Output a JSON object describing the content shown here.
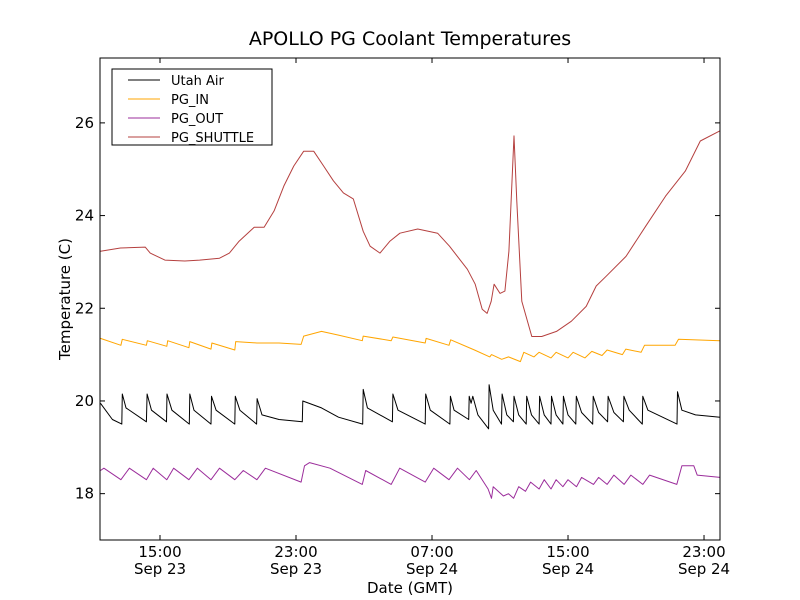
{
  "chart_data": {
    "type": "line",
    "title": "APOLLO PG Coolant Temperatures",
    "xlabel": "Date (GMT)",
    "ylabel": "Temperature (C)",
    "x_units": "hours since Sep 23 00:00 GMT",
    "xlim": [
      11.47,
      47.94
    ],
    "ylim": [
      17.0,
      27.4
    ],
    "grid": false,
    "legend_position": "top-left",
    "xticks": [
      {
        "value": 15,
        "time": "15:00",
        "date": "Sep 23"
      },
      {
        "value": 23,
        "time": "23:00",
        "date": "Sep 23"
      },
      {
        "value": 31,
        "time": "07:00",
        "date": "Sep 24"
      },
      {
        "value": 39,
        "time": "15:00",
        "date": "Sep 24"
      },
      {
        "value": 47,
        "time": "23:00",
        "date": "Sep 24"
      }
    ],
    "yticks": [
      18,
      20,
      22,
      24,
      26
    ],
    "series": [
      {
        "name": "Utah Air",
        "color": "#000000",
        "points": [
          [
            11.5,
            19.95
          ],
          [
            12.2,
            19.6
          ],
          [
            12.75,
            19.5
          ],
          [
            12.78,
            20.15
          ],
          [
            13.0,
            19.85
          ],
          [
            14.2,
            19.55
          ],
          [
            14.24,
            20.15
          ],
          [
            14.5,
            19.8
          ],
          [
            15.38,
            19.55
          ],
          [
            15.41,
            20.15
          ],
          [
            15.7,
            19.8
          ],
          [
            16.72,
            19.5
          ],
          [
            16.75,
            20.15
          ],
          [
            17.0,
            19.8
          ],
          [
            18.0,
            19.5
          ],
          [
            18.03,
            20.1
          ],
          [
            18.3,
            19.8
          ],
          [
            19.4,
            19.5
          ],
          [
            19.43,
            20.1
          ],
          [
            19.7,
            19.8
          ],
          [
            20.68,
            19.5
          ],
          [
            20.71,
            20.05
          ],
          [
            21.0,
            19.7
          ],
          [
            22.0,
            19.6
          ],
          [
            23.37,
            19.55
          ],
          [
            23.4,
            20.0
          ],
          [
            24.5,
            19.85
          ],
          [
            25.5,
            19.65
          ],
          [
            26.92,
            19.5
          ],
          [
            26.95,
            20.25
          ],
          [
            27.2,
            19.85
          ],
          [
            28.67,
            19.55
          ],
          [
            28.7,
            20.15
          ],
          [
            29.0,
            19.8
          ],
          [
            30.6,
            19.5
          ],
          [
            30.63,
            20.15
          ],
          [
            30.9,
            19.8
          ],
          [
            32.05,
            19.5
          ],
          [
            32.08,
            20.1
          ],
          [
            32.3,
            19.8
          ],
          [
            33.16,
            19.6
          ],
          [
            33.19,
            20.1
          ],
          [
            33.3,
            19.95
          ],
          [
            33.4,
            20.1
          ],
          [
            33.7,
            19.7
          ],
          [
            34.33,
            19.4
          ],
          [
            34.36,
            20.35
          ],
          [
            34.6,
            19.8
          ],
          [
            35.09,
            19.5
          ],
          [
            35.12,
            20.15
          ],
          [
            35.4,
            19.7
          ],
          [
            35.79,
            19.55
          ],
          [
            35.82,
            20.1
          ],
          [
            36.1,
            19.7
          ],
          [
            36.54,
            19.5
          ],
          [
            36.57,
            20.1
          ],
          [
            36.85,
            19.7
          ],
          [
            37.3,
            19.5
          ],
          [
            37.33,
            20.1
          ],
          [
            37.6,
            19.7
          ],
          [
            38.0,
            19.5
          ],
          [
            38.03,
            20.1
          ],
          [
            38.3,
            19.7
          ],
          [
            38.7,
            19.5
          ],
          [
            38.73,
            20.1
          ],
          [
            39.0,
            19.7
          ],
          [
            39.46,
            19.5
          ],
          [
            39.49,
            20.1
          ],
          [
            39.8,
            19.75
          ],
          [
            40.45,
            19.5
          ],
          [
            40.48,
            20.1
          ],
          [
            40.8,
            19.75
          ],
          [
            41.33,
            19.55
          ],
          [
            41.36,
            20.1
          ],
          [
            41.7,
            19.75
          ],
          [
            42.26,
            19.55
          ],
          [
            42.29,
            20.1
          ],
          [
            42.6,
            19.8
          ],
          [
            43.37,
            19.5
          ],
          [
            43.4,
            20.1
          ],
          [
            43.7,
            19.8
          ],
          [
            45.41,
            19.5
          ],
          [
            45.44,
            20.2
          ],
          [
            45.7,
            19.8
          ],
          [
            46.5,
            19.7
          ],
          [
            47.94,
            19.65
          ]
        ]
      },
      {
        "name": "PG_IN",
        "color": "#ffa500",
        "points": [
          [
            11.5,
            21.35
          ],
          [
            12.7,
            21.2
          ],
          [
            12.78,
            21.33
          ],
          [
            14.2,
            21.2
          ],
          [
            14.25,
            21.3
          ],
          [
            15.4,
            21.18
          ],
          [
            15.45,
            21.3
          ],
          [
            16.7,
            21.15
          ],
          [
            16.75,
            21.28
          ],
          [
            18.0,
            21.12
          ],
          [
            18.05,
            21.25
          ],
          [
            19.4,
            21.1
          ],
          [
            19.45,
            21.28
          ],
          [
            20.7,
            21.25
          ],
          [
            22.0,
            21.25
          ],
          [
            23.3,
            21.22
          ],
          [
            23.45,
            21.4
          ],
          [
            24.5,
            21.5
          ],
          [
            25.5,
            21.42
          ],
          [
            26.9,
            21.3
          ],
          [
            26.95,
            21.4
          ],
          [
            28.6,
            21.3
          ],
          [
            28.7,
            21.38
          ],
          [
            30.6,
            21.25
          ],
          [
            30.65,
            21.35
          ],
          [
            32.0,
            21.2
          ],
          [
            32.1,
            21.32
          ],
          [
            33.5,
            21.1
          ],
          [
            34.4,
            20.95
          ],
          [
            34.5,
            21.0
          ],
          [
            35.1,
            20.9
          ],
          [
            35.5,
            20.95
          ],
          [
            36.2,
            20.85
          ],
          [
            36.4,
            21.05
          ],
          [
            37.0,
            20.95
          ],
          [
            37.3,
            21.05
          ],
          [
            38.0,
            20.93
          ],
          [
            38.3,
            21.05
          ],
          [
            39.0,
            20.93
          ],
          [
            39.3,
            21.05
          ],
          [
            40.0,
            20.93
          ],
          [
            40.4,
            21.07
          ],
          [
            41.0,
            20.98
          ],
          [
            41.3,
            21.1
          ],
          [
            42.2,
            21.0
          ],
          [
            42.4,
            21.12
          ],
          [
            43.3,
            21.05
          ],
          [
            43.5,
            21.2
          ],
          [
            45.3,
            21.2
          ],
          [
            45.5,
            21.33
          ],
          [
            47.94,
            21.3
          ]
        ]
      },
      {
        "name": "PG_OUT",
        "color": "#9b2d9b",
        "points": [
          [
            11.5,
            18.5
          ],
          [
            11.7,
            18.55
          ],
          [
            12.7,
            18.3
          ],
          [
            13.2,
            18.55
          ],
          [
            14.2,
            18.3
          ],
          [
            14.6,
            18.55
          ],
          [
            15.4,
            18.3
          ],
          [
            15.8,
            18.55
          ],
          [
            16.7,
            18.3
          ],
          [
            17.2,
            18.55
          ],
          [
            18.0,
            18.3
          ],
          [
            18.5,
            18.55
          ],
          [
            19.4,
            18.3
          ],
          [
            19.9,
            18.5
          ],
          [
            20.7,
            18.3
          ],
          [
            21.2,
            18.55
          ],
          [
            23.3,
            18.25
          ],
          [
            23.5,
            18.6
          ],
          [
            23.8,
            18.67
          ],
          [
            25.0,
            18.55
          ],
          [
            26.9,
            18.2
          ],
          [
            27.1,
            18.5
          ],
          [
            28.6,
            18.2
          ],
          [
            29.1,
            18.55
          ],
          [
            30.6,
            18.25
          ],
          [
            31.1,
            18.55
          ],
          [
            32.0,
            18.3
          ],
          [
            32.5,
            18.55
          ],
          [
            33.2,
            18.3
          ],
          [
            33.6,
            18.5
          ],
          [
            34.3,
            18.1
          ],
          [
            34.5,
            17.9
          ],
          [
            34.6,
            18.15
          ],
          [
            35.2,
            17.95
          ],
          [
            35.5,
            18.0
          ],
          [
            35.8,
            17.9
          ],
          [
            36.1,
            18.15
          ],
          [
            36.5,
            18.05
          ],
          [
            36.8,
            18.25
          ],
          [
            37.3,
            18.1
          ],
          [
            37.6,
            18.3
          ],
          [
            38.0,
            18.1
          ],
          [
            38.3,
            18.3
          ],
          [
            38.7,
            18.15
          ],
          [
            39.0,
            18.3
          ],
          [
            39.5,
            18.15
          ],
          [
            39.8,
            18.35
          ],
          [
            40.5,
            18.2
          ],
          [
            40.8,
            18.35
          ],
          [
            41.3,
            18.2
          ],
          [
            41.7,
            18.4
          ],
          [
            42.3,
            18.2
          ],
          [
            42.7,
            18.4
          ],
          [
            43.4,
            18.2
          ],
          [
            43.8,
            18.4
          ],
          [
            45.4,
            18.2
          ],
          [
            45.7,
            18.6
          ],
          [
            46.4,
            18.6
          ],
          [
            46.6,
            18.4
          ],
          [
            47.94,
            18.35
          ]
        ]
      },
      {
        "name": "PG_SHUTTLE",
        "color": "#b5403f",
        "points": [
          [
            11.5,
            23.23
          ],
          [
            12.67,
            23.3
          ],
          [
            14.13,
            23.32
          ],
          [
            14.42,
            23.19
          ],
          [
            15.29,
            23.04
          ],
          [
            16.46,
            23.02
          ],
          [
            17.33,
            23.04
          ],
          [
            18.5,
            23.08
          ],
          [
            19.08,
            23.19
          ],
          [
            19.66,
            23.45
          ],
          [
            20.54,
            23.75
          ],
          [
            21.12,
            23.75
          ],
          [
            21.71,
            24.1
          ],
          [
            22.29,
            24.64
          ],
          [
            22.87,
            25.07
          ],
          [
            23.45,
            25.39
          ],
          [
            24.04,
            25.39
          ],
          [
            24.62,
            25.07
          ],
          [
            25.2,
            24.75
          ],
          [
            25.79,
            24.49
          ],
          [
            26.37,
            24.36
          ],
          [
            26.95,
            23.66
          ],
          [
            27.36,
            23.34
          ],
          [
            27.94,
            23.19
          ],
          [
            28.53,
            23.45
          ],
          [
            29.11,
            23.62
          ],
          [
            30.16,
            23.71
          ],
          [
            31.33,
            23.62
          ],
          [
            32.03,
            23.34
          ],
          [
            33.08,
            22.84
          ],
          [
            33.54,
            22.52
          ],
          [
            33.95,
            21.98
          ],
          [
            34.24,
            21.89
          ],
          [
            34.48,
            22.15
          ],
          [
            34.65,
            22.52
          ],
          [
            35.0,
            22.32
          ],
          [
            35.29,
            22.37
          ],
          [
            35.52,
            23.23
          ],
          [
            35.82,
            25.72
          ],
          [
            35.99,
            24.31
          ],
          [
            36.28,
            22.15
          ],
          [
            36.87,
            21.39
          ],
          [
            37.45,
            21.39
          ],
          [
            38.32,
            21.5
          ],
          [
            39.2,
            21.72
          ],
          [
            40.07,
            22.04
          ],
          [
            40.66,
            22.48
          ],
          [
            41.24,
            22.69
          ],
          [
            42.41,
            23.12
          ],
          [
            43.57,
            23.77
          ],
          [
            44.74,
            24.42
          ],
          [
            45.9,
            24.96
          ],
          [
            46.78,
            25.61
          ],
          [
            47.94,
            25.83
          ]
        ]
      }
    ]
  }
}
